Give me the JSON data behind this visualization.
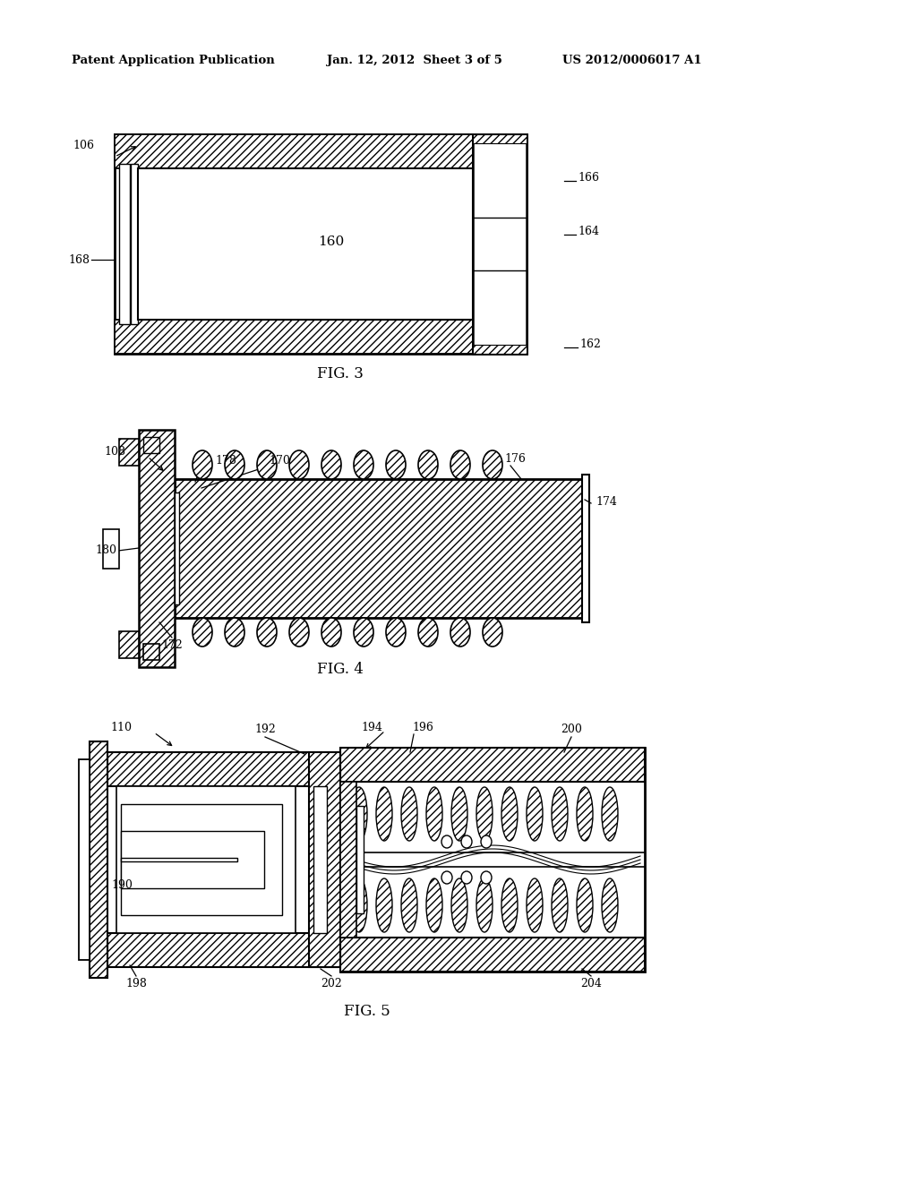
{
  "bg_color": "#ffffff",
  "header_left": "Patent Application Publication",
  "header_mid": "Jan. 12, 2012  Sheet 3 of 5",
  "header_right": "US 2012/0006017 A1",
  "fig3_label": "FIG. 3",
  "fig4_label": "FIG. 4",
  "fig5_label": "FIG. 5"
}
